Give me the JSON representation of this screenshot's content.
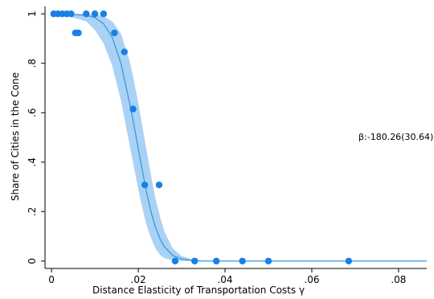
{
  "chart_data": {
    "type": "scatter",
    "title": "",
    "xlabel": "Distance Elasticity of Transportation Costs γ",
    "ylabel": "Share of Cities in the Cone",
    "xlim": [
      -0.0015,
      0.0865
    ],
    "ylim": [
      -0.03,
      1.03
    ],
    "xticks": [
      0,
      0.02,
      0.04,
      0.06,
      0.08
    ],
    "xtick_labels": [
      "0",
      ".02",
      ".04",
      ".06",
      ".08"
    ],
    "yticks": [
      0,
      0.2,
      0.4,
      0.6,
      0.8,
      1
    ],
    "ytick_labels": [
      "0",
      ".2",
      ".4",
      ".6",
      ".8",
      "1"
    ],
    "grid": false,
    "annotation": "β:-180.26(30.64)",
    "colors": {
      "points": "#1a7fe6",
      "fit_line": "#3b9ad9",
      "ci_band": "#a9d2f5"
    },
    "points": [
      {
        "x": 0.0005,
        "y": 1.0
      },
      {
        "x": 0.0015,
        "y": 1.0
      },
      {
        "x": 0.0025,
        "y": 1.0
      },
      {
        "x": 0.0035,
        "y": 1.0
      },
      {
        "x": 0.0045,
        "y": 1.0
      },
      {
        "x": 0.008,
        "y": 1.0
      },
      {
        "x": 0.01,
        "y": 1.0
      },
      {
        "x": 0.012,
        "y": 1.0
      },
      {
        "x": 0.0055,
        "y": 0.923
      },
      {
        "x": 0.0062,
        "y": 0.923
      },
      {
        "x": 0.0145,
        "y": 0.923
      },
      {
        "x": 0.0168,
        "y": 0.846
      },
      {
        "x": 0.0188,
        "y": 0.615
      },
      {
        "x": 0.0215,
        "y": 0.308
      },
      {
        "x": 0.0248,
        "y": 0.308
      },
      {
        "x": 0.0285,
        "y": 0.0
      },
      {
        "x": 0.033,
        "y": 0.0
      },
      {
        "x": 0.038,
        "y": 0.0
      },
      {
        "x": 0.044,
        "y": 0.0
      },
      {
        "x": 0.05,
        "y": 0.0
      },
      {
        "x": 0.0685,
        "y": 0.0
      }
    ],
    "fit": {
      "x": [
        0.0,
        0.004,
        0.008,
        0.01,
        0.012,
        0.014,
        0.016,
        0.018,
        0.019,
        0.02,
        0.021,
        0.022,
        0.023,
        0.024,
        0.025,
        0.026,
        0.028,
        0.03,
        0.033,
        0.036,
        0.04,
        0.05,
        0.06,
        0.07,
        0.08,
        0.0865
      ],
      "y": [
        1.0,
        0.999,
        0.994,
        0.985,
        0.96,
        0.905,
        0.8,
        0.64,
        0.55,
        0.455,
        0.36,
        0.27,
        0.195,
        0.135,
        0.09,
        0.058,
        0.022,
        0.008,
        0.001,
        0.0,
        0.0,
        0.0,
        0.0,
        0.0,
        0.0,
        0.0
      ],
      "ci_upper": [
        1.0,
        1.0,
        0.999,
        0.997,
        0.99,
        0.97,
        0.92,
        0.81,
        0.73,
        0.64,
        0.54,
        0.44,
        0.34,
        0.25,
        0.18,
        0.12,
        0.05,
        0.02,
        0.004,
        0.001,
        0.0,
        0.0,
        0.0,
        0.0,
        0.0,
        0.0
      ],
      "ci_lower": [
        0.998,
        0.99,
        0.97,
        0.935,
        0.88,
        0.79,
        0.65,
        0.47,
        0.38,
        0.29,
        0.21,
        0.14,
        0.09,
        0.05,
        0.025,
        0.012,
        0.003,
        0.0,
        0.0,
        0.0,
        0.0,
        0.0,
        0.0,
        0.0,
        0.0,
        0.0
      ]
    }
  }
}
